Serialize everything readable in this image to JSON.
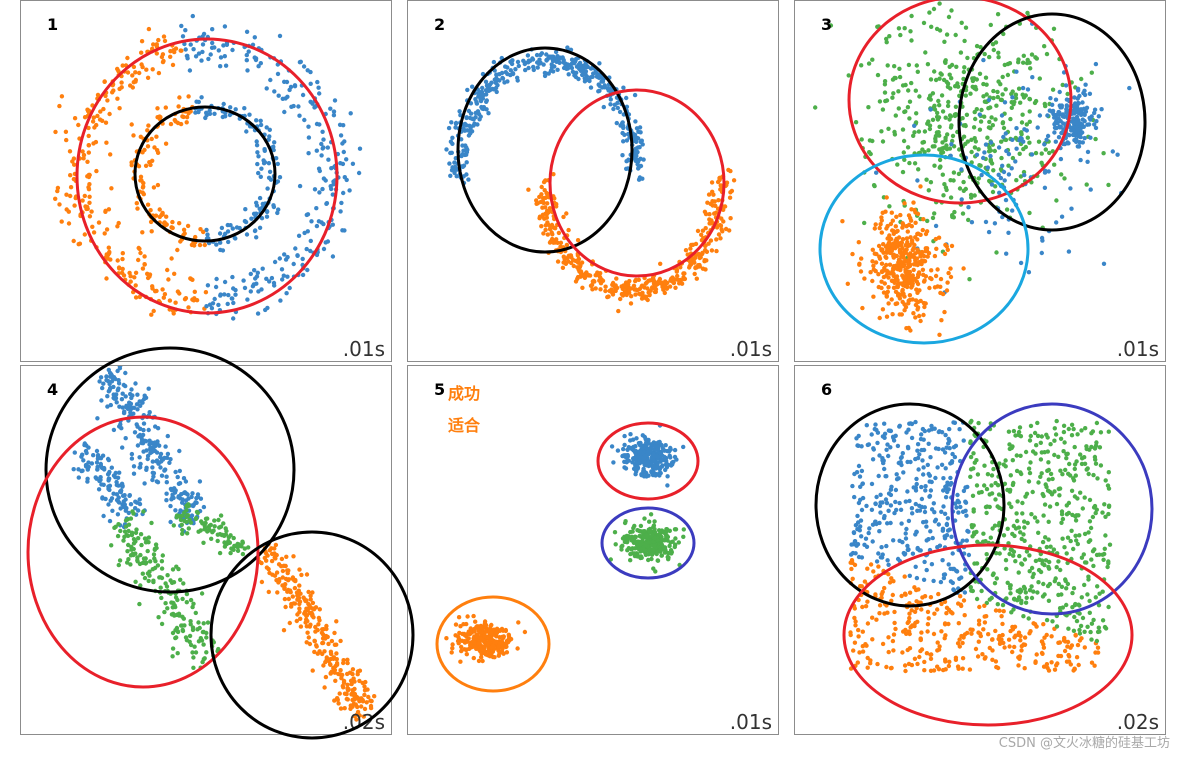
{
  "chart_data": [
    {
      "type": "scatter",
      "panel_number": "1",
      "time_label": ".01s",
      "clusters": [
        {
          "shape": "ring",
          "color": "orange",
          "center": [
            0,
            0
          ],
          "radius": 2.4
        },
        {
          "shape": "ring",
          "color": "orange",
          "center": [
            0,
            0
          ],
          "radius": 1.2
        },
        {
          "shape": "ring",
          "color": "blue",
          "center": [
            0,
            0
          ],
          "radius": 2.4
        },
        {
          "shape": "ring",
          "color": "blue",
          "center": [
            0,
            0
          ],
          "radius": 1.2
        }
      ],
      "annotations": [
        {
          "shape": "ellipse",
          "color": "red"
        },
        {
          "shape": "ellipse",
          "color": "black"
        }
      ]
    },
    {
      "type": "scatter",
      "panel_number": "2",
      "time_label": ".01s",
      "clusters": [
        {
          "shape": "moon",
          "color": "blue",
          "orientation": "up"
        },
        {
          "shape": "moon",
          "color": "orange",
          "orientation": "down"
        }
      ],
      "annotations": [
        {
          "shape": "ellipse",
          "color": "black"
        },
        {
          "shape": "ellipse",
          "color": "red"
        }
      ]
    },
    {
      "type": "scatter",
      "panel_number": "3",
      "time_label": ".01s",
      "clusters": [
        {
          "shape": "blob",
          "color": "green",
          "spread": "wide"
        },
        {
          "shape": "blob",
          "color": "blue",
          "spread": "tight"
        },
        {
          "shape": "blob",
          "color": "orange",
          "spread": "medium"
        }
      ],
      "annotations": [
        {
          "shape": "ellipse",
          "color": "red"
        },
        {
          "shape": "ellipse",
          "color": "black"
        },
        {
          "shape": "ellipse",
          "color": "lightblue"
        }
      ]
    },
    {
      "type": "scatter",
      "panel_number": "4",
      "time_label": ".02s",
      "clusters": [
        {
          "shape": "diagonal-band",
          "color": "blue"
        },
        {
          "shape": "diagonal-band",
          "color": "green"
        },
        {
          "shape": "diagonal-band",
          "color": "orange"
        }
      ],
      "annotations": [
        {
          "shape": "ellipse",
          "color": "black"
        },
        {
          "shape": "ellipse",
          "color": "red"
        },
        {
          "shape": "ellipse",
          "color": "black"
        }
      ]
    },
    {
      "type": "scatter",
      "panel_number": "5",
      "time_label": ".01s",
      "notes": [
        "成功",
        "适合"
      ],
      "clusters": [
        {
          "shape": "blob",
          "color": "blue",
          "spread": "tight"
        },
        {
          "shape": "blob",
          "color": "green",
          "spread": "tight"
        },
        {
          "shape": "blob",
          "color": "orange",
          "spread": "tight"
        }
      ],
      "annotations": [
        {
          "shape": "ellipse",
          "color": "red"
        },
        {
          "shape": "ellipse",
          "color": "navy"
        },
        {
          "shape": "ellipse",
          "color": "orange"
        }
      ]
    },
    {
      "type": "scatter",
      "panel_number": "6",
      "time_label": ".02s",
      "clusters": [
        {
          "shape": "uniform-rect",
          "color": "blue"
        },
        {
          "shape": "uniform-rect",
          "color": "green"
        },
        {
          "shape": "uniform-rect",
          "color": "orange"
        }
      ],
      "annotations": [
        {
          "shape": "ellipse",
          "color": "black"
        },
        {
          "shape": "ellipse",
          "color": "navy"
        },
        {
          "shape": "ellipse",
          "color": "red"
        }
      ]
    }
  ],
  "colors": {
    "blue": "#3a86c8",
    "orange": "#ff7f0e",
    "green": "#4daf4a",
    "red": "#e8202a",
    "black": "#000000",
    "navy": "#3b3bbf",
    "lightblue": "#1aa7e0"
  },
  "watermark": "CSDN @文火冰糖的硅基工坊"
}
